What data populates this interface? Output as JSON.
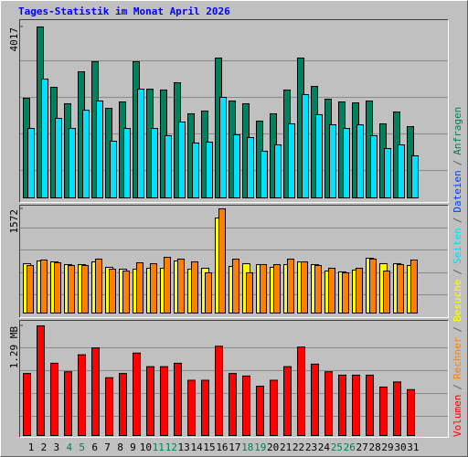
{
  "chart_data": [
    {
      "type": "bar",
      "title": "Tages-Statistik im Monat April 2026",
      "legend_separator": "/",
      "ylim": [
        0,
        4017
      ],
      "yticks": [
        4017
      ],
      "series": [
        {
          "name": "Anfragen",
          "color": "#00805c",
          "values": [
            2341,
            4017,
            2599,
            2213,
            2964,
            3200,
            2105,
            2255,
            3200,
            2556,
            2535,
            2706,
            1976,
            2041,
            3286,
            2277,
            2212,
            1804,
            1976,
            2535,
            3286,
            2620,
            2320,
            2255,
            2234,
            2277,
            1740,
            2019,
            1675,
            null,
            null
          ]
        },
        {
          "name": "Dateien",
          "color": "#0040ff",
          "values": [
            null,
            null,
            null,
            null,
            null,
            null,
            null,
            null,
            null,
            null,
            null,
            null,
            null,
            null,
            null,
            null,
            null,
            null,
            null,
            null,
            null,
            null,
            null,
            null,
            null,
            null,
            null,
            null,
            null,
            null,
            null
          ]
        },
        {
          "name": "Seiten",
          "color": "#00e0ff",
          "values": [
            1632,
            2792,
            1869,
            1632,
            2062,
            2277,
            1332,
            1632,
            2556,
            1632,
            1461,
            1783,
            1289,
            1310,
            2363,
            1482,
            1418,
            1095,
            1246,
            1740,
            2427,
            1955,
            1718,
            1632,
            1718,
            1461,
            1160,
            1246,
            988,
            null,
            null
          ]
        }
      ]
    },
    {
      "type": "bar",
      "ylim": [
        0,
        1572
      ],
      "yticks": [
        1572
      ],
      "series": [
        {
          "name": "Besuche",
          "color": "#ffff00",
          "values": [
            745,
            786,
            772,
            731,
            731,
            772,
            690,
            662,
            662,
            676,
            676,
            786,
            662,
            676,
            1434,
            703,
            745,
            731,
            690,
            731,
            772,
            731,
            634,
            621,
            648,
            827,
            745,
            745,
            717,
            null,
            null
          ]
        },
        {
          "name": "Rechner",
          "color": "#ff8000",
          "values": [
            717,
            800,
            758,
            717,
            717,
            814,
            662,
            634,
            758,
            745,
            841,
            814,
            772,
            607,
            1572,
            814,
            607,
            731,
            731,
            814,
            772,
            717,
            676,
            607,
            676,
            814,
            634,
            731,
            800,
            null,
            null
          ]
        }
      ]
    },
    {
      "type": "bar",
      "ylim": [
        0,
        1.29
      ],
      "yticks": [
        {
          "value": 1.29,
          "label": "1.29 MB"
        }
      ],
      "series": [
        {
          "name": "Volumen",
          "color": "#ff0000",
          "values": [
            0.73,
            1.29,
            0.85,
            0.75,
            0.95,
            1.03,
            0.68,
            0.73,
            0.97,
            0.81,
            0.81,
            0.85,
            0.65,
            0.65,
            1.05,
            0.73,
            0.7,
            0.58,
            0.65,
            0.81,
            1.04,
            0.84,
            0.75,
            0.71,
            0.71,
            0.71,
            0.57,
            0.63,
            0.54,
            null,
            null
          ]
        }
      ],
      "categories": [
        "1",
        "2",
        "3",
        "4",
        "5",
        "6",
        "7",
        "8",
        "9",
        "10",
        "11",
        "12",
        "13",
        "14",
        "15",
        "16",
        "17",
        "18",
        "19",
        "20",
        "21",
        "22",
        "23",
        "24",
        "25",
        "26",
        "27",
        "28",
        "29",
        "30",
        "31"
      ],
      "category_colors": [
        "#000000",
        "#000000",
        "#000000",
        "#00805c",
        "#00805c",
        "#000000",
        "#000000",
        "#000000",
        "#000000",
        "#000000",
        "#00805c",
        "#00805c",
        "#000000",
        "#000000",
        "#000000",
        "#000000",
        "#000000",
        "#00805c",
        "#00805c",
        "#000000",
        "#000000",
        "#000000",
        "#000000",
        "#000000",
        "#00805c",
        "#00805c",
        "#000000",
        "#000000",
        "#000000",
        "#000000",
        "#000000"
      ]
    }
  ]
}
